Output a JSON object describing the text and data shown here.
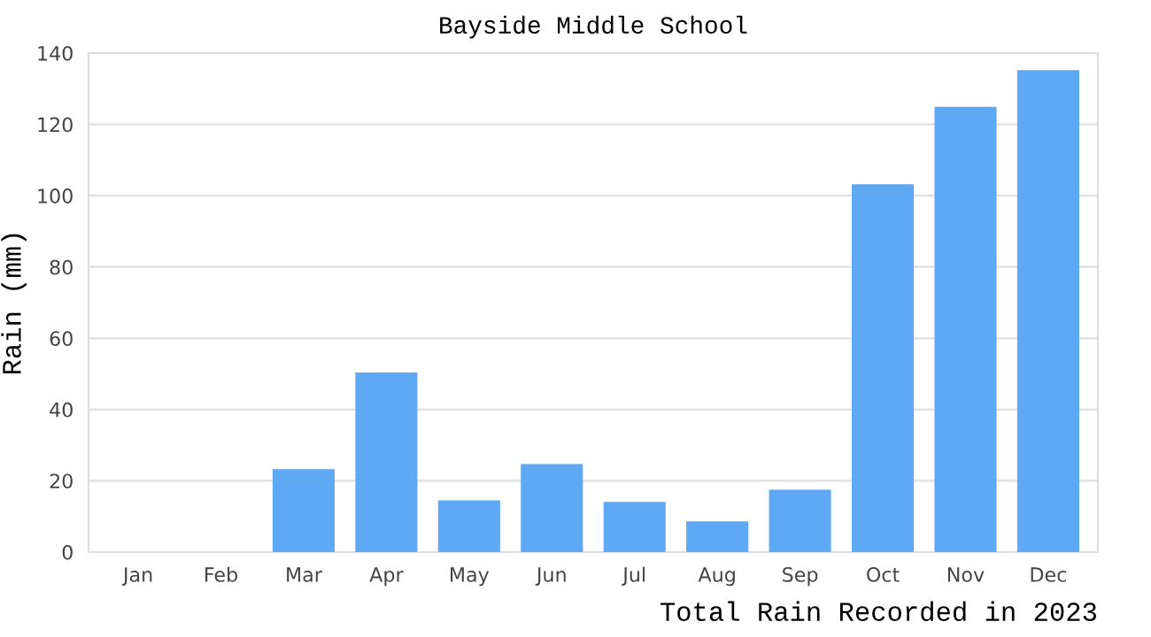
{
  "chart_data": {
    "type": "bar",
    "title": "Bayside Middle School",
    "xlabel": "Total Rain Recorded in 2023",
    "ylabel": "Rain (mm)",
    "categories": [
      "Jan",
      "Feb",
      "Mar",
      "Apr",
      "May",
      "Jun",
      "Jul",
      "Aug",
      "Sep",
      "Oct",
      "Nov",
      "Dec"
    ],
    "values": [
      0,
      0,
      23.3,
      50.4,
      14.5,
      24.7,
      14.1,
      8.6,
      17.5,
      103.2,
      124.9,
      135.2
    ],
    "color": "#5fa8f3",
    "ylim": [
      0,
      140
    ],
    "yticks": [
      0,
      20,
      40,
      60,
      80,
      100,
      120,
      140
    ],
    "grid": "y"
  }
}
